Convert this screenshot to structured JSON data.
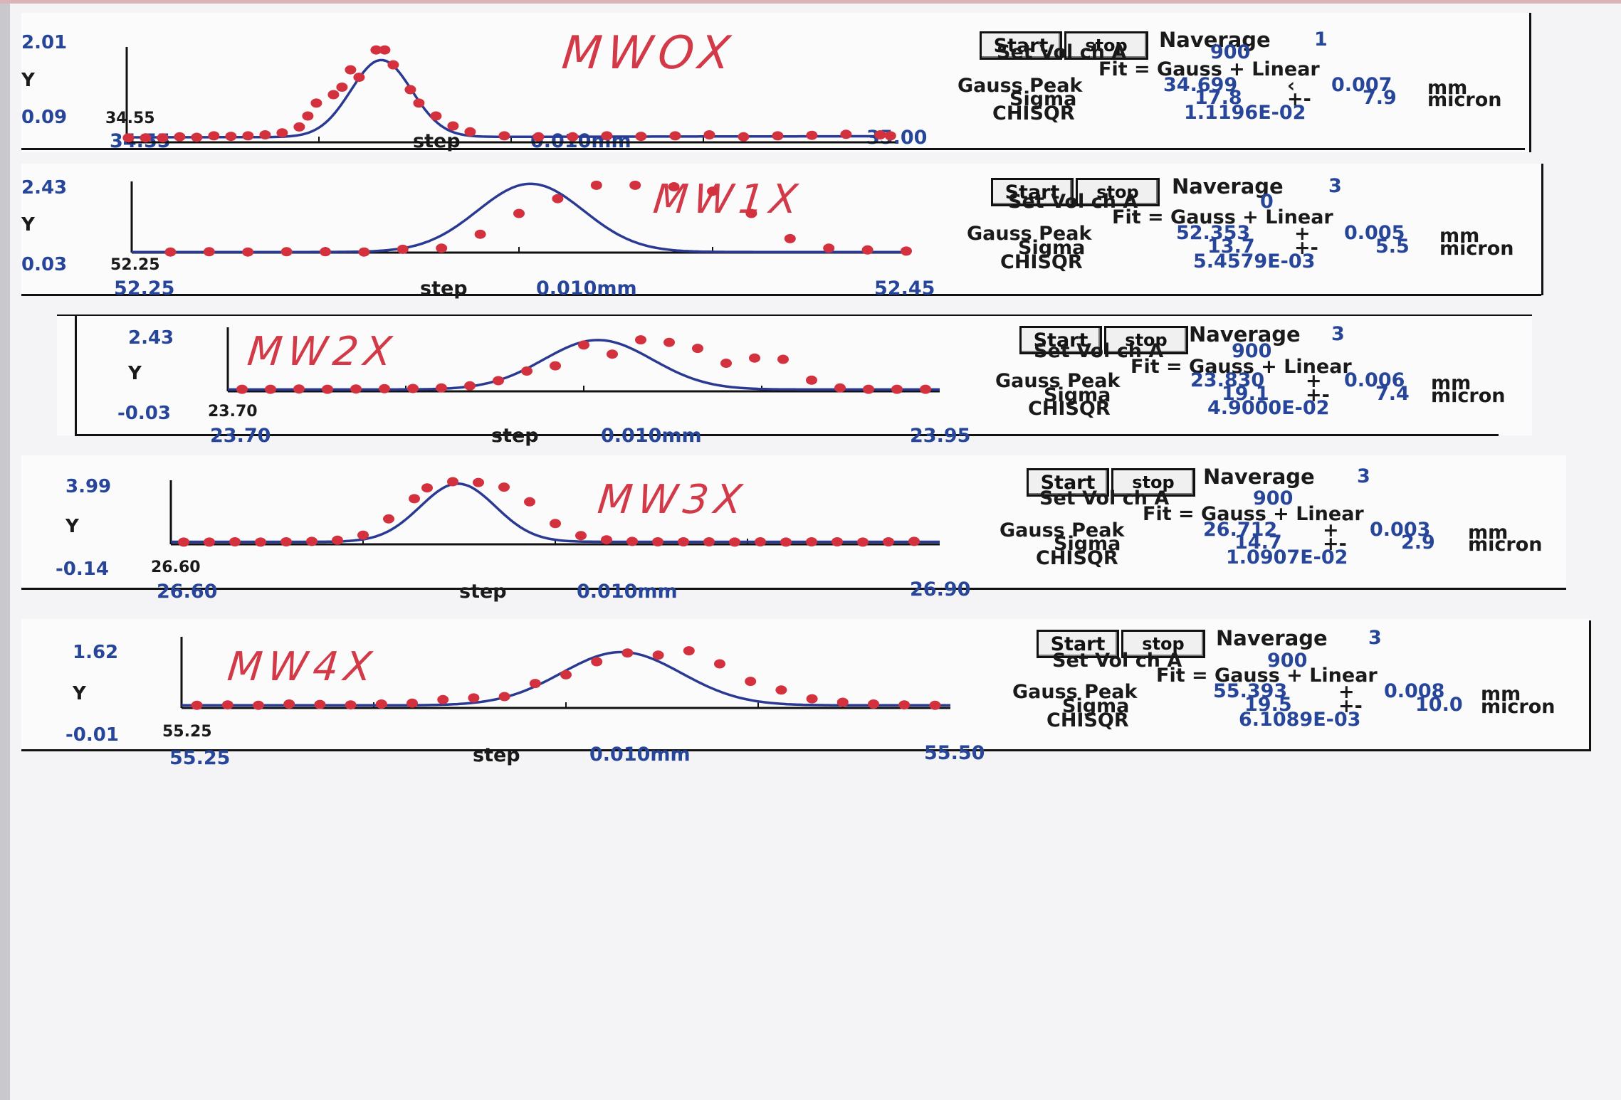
{
  "colors": {
    "marker": "#d4313f",
    "fit_line": "#2a3a92",
    "label_blue": "#27469a",
    "label_dark": "#1a1a1a",
    "handwriting": "#d23a48"
  },
  "chart_data": [
    {
      "type": "scatter",
      "annotation": "MWOX",
      "ylim": [
        0.09,
        2.01
      ],
      "y_max_label": "2.01",
      "y_min_label": "0.09",
      "ylabel": "Y",
      "x_start_small": "34.55",
      "x_start": "34.55",
      "step_label": "step",
      "step_value": "0.010mm",
      "x_end": "35.00",
      "xlim": [
        34.55,
        35.0
      ],
      "points": [
        [
          34.551,
          0.18
        ],
        [
          34.561,
          0.18
        ],
        [
          34.571,
          0.18
        ],
        [
          34.581,
          0.2
        ],
        [
          34.591,
          0.19
        ],
        [
          34.601,
          0.22
        ],
        [
          34.611,
          0.21
        ],
        [
          34.621,
          0.22
        ],
        [
          34.631,
          0.24
        ],
        [
          34.641,
          0.28
        ],
        [
          34.651,
          0.4
        ],
        [
          34.656,
          0.62
        ],
        [
          34.661,
          0.88
        ],
        [
          34.671,
          1.05
        ],
        [
          34.676,
          1.2
        ],
        [
          34.681,
          1.55
        ],
        [
          34.686,
          1.4
        ],
        [
          34.696,
          1.95
        ],
        [
          34.701,
          1.95
        ],
        [
          34.706,
          1.65
        ],
        [
          34.716,
          1.15
        ],
        [
          34.721,
          0.88
        ],
        [
          34.731,
          0.62
        ],
        [
          34.741,
          0.42
        ],
        [
          34.751,
          0.3
        ],
        [
          34.771,
          0.22
        ],
        [
          34.791,
          0.2
        ],
        [
          34.811,
          0.2
        ],
        [
          34.831,
          0.22
        ],
        [
          34.851,
          0.21
        ],
        [
          34.871,
          0.22
        ],
        [
          34.891,
          0.24
        ],
        [
          34.911,
          0.2
        ],
        [
          34.931,
          0.22
        ],
        [
          34.951,
          0.23
        ],
        [
          34.971,
          0.25
        ],
        [
          34.991,
          0.24
        ],
        [
          34.997,
          0.22
        ]
      ],
      "fit": {
        "amp": 1.55,
        "mu": 34.699,
        "sigma": 0.0178,
        "base": 0.19,
        "slope": 0.05
      },
      "controls": {
        "start": "Start",
        "stop": "stop",
        "naverage_label": "Naverage",
        "naverage": "1"
      },
      "info": {
        "setvol_label": "Set Vol ch A",
        "setvol": "900",
        "fit_label": "Fit = Gauss + Linear",
        "gauss_label": "Gauss Peak",
        "gauss_value": "34.699",
        "gauss_pm": "‹",
        "gauss_err": "0.007",
        "gauss_unit": "mm",
        "sigma_label": "Sigma",
        "sigma_value": "17.8",
        "sigma_pm": "+-",
        "sigma_err": "7.9",
        "sigma_unit": "micron",
        "chisqr_label": "CHISQR",
        "chisqr": "1.1196E-02"
      }
    },
    {
      "type": "scatter",
      "annotation": "MW1X",
      "ylim": [
        0.03,
        2.43
      ],
      "y_max_label": "2.43",
      "y_min_label": "0.03",
      "ylabel": "Y",
      "x_start_small": "52.25",
      "x_start": "52.25",
      "step_label": "step",
      "step_value": "0.010mm",
      "x_end": "52.45",
      "xlim": [
        52.25,
        52.45
      ],
      "points": [
        [
          52.26,
          0.05
        ],
        [
          52.27,
          0.06
        ],
        [
          52.28,
          0.05
        ],
        [
          52.29,
          0.06
        ],
        [
          52.3,
          0.06
        ],
        [
          52.31,
          0.05
        ],
        [
          52.32,
          0.14
        ],
        [
          52.33,
          0.18
        ],
        [
          52.34,
          0.65
        ],
        [
          52.35,
          1.35
        ],
        [
          52.36,
          1.85
        ],
        [
          52.37,
          2.3
        ],
        [
          52.38,
          2.3
        ],
        [
          52.39,
          2.25
        ],
        [
          52.4,
          2.1
        ],
        [
          52.41,
          1.35
        ],
        [
          52.42,
          0.5
        ],
        [
          52.43,
          0.18
        ],
        [
          52.44,
          0.12
        ],
        [
          52.45,
          0.08
        ]
      ],
      "fit": {
        "amp": 2.3,
        "mu": 52.353,
        "sigma": 0.0137,
        "base": 0.05,
        "slope": 0.0
      },
      "controls": {
        "start": "Start",
        "stop": "stop",
        "naverage_label": "Naverage",
        "naverage": "3"
      },
      "info": {
        "setvol_label": "Set Vol ch A",
        "setvol": "0",
        "fit_label": "Fit = Gauss + Linear",
        "gauss_label": "Gauss Peak",
        "gauss_value": "52.353",
        "gauss_pm": "+",
        "gauss_err": "0.005",
        "gauss_unit": "mm",
        "sigma_label": "Sigma",
        "sigma_value": "13.7",
        "sigma_pm": "+-",
        "sigma_err": "5.5",
        "sigma_unit": "micron",
        "chisqr_label": "CHISQR",
        "chisqr": "5.4579E-03"
      }
    },
    {
      "type": "scatter",
      "annotation": "MW2X",
      "ylim": [
        -0.03,
        2.43
      ],
      "y_max_label": "2.43",
      "y_min_label": "-0.03",
      "ylabel": "Y",
      "x_start_small": "23.70",
      "x_start": "23.70",
      "step_label": "step",
      "step_value": "0.010mm",
      "x_end": "23.95",
      "xlim": [
        23.7,
        23.95
      ],
      "points": [
        [
          23.705,
          0.05
        ],
        [
          23.715,
          0.05
        ],
        [
          23.725,
          0.06
        ],
        [
          23.735,
          0.05
        ],
        [
          23.745,
          0.06
        ],
        [
          23.755,
          0.07
        ],
        [
          23.765,
          0.08
        ],
        [
          23.775,
          0.1
        ],
        [
          23.785,
          0.18
        ],
        [
          23.795,
          0.38
        ],
        [
          23.805,
          0.75
        ],
        [
          23.815,
          0.95
        ],
        [
          23.825,
          1.75
        ],
        [
          23.835,
          1.4
        ],
        [
          23.845,
          1.95
        ],
        [
          23.855,
          1.85
        ],
        [
          23.865,
          1.62
        ],
        [
          23.875,
          1.05
        ],
        [
          23.885,
          1.25
        ],
        [
          23.895,
          1.2
        ],
        [
          23.905,
          0.4
        ],
        [
          23.915,
          0.1
        ],
        [
          23.925,
          0.05
        ],
        [
          23.935,
          0.05
        ],
        [
          23.945,
          0.05
        ]
      ],
      "fit": {
        "amp": 1.9,
        "mu": 23.83,
        "sigma": 0.0191,
        "base": 0.04,
        "slope": 0.0
      },
      "controls": {
        "start": "Start",
        "stop": "stop",
        "naverage_label": "Naverage",
        "naverage": "3"
      },
      "info": {
        "setvol_label": "Set Vol ch A",
        "setvol": "900",
        "fit_label": "Fit = Gauss + Linear",
        "gauss_label": "Gauss Peak",
        "gauss_value": "23.830",
        "gauss_pm": "+",
        "gauss_err": "0.006",
        "gauss_unit": "mm",
        "sigma_label": "Sigma",
        "sigma_value": "19.1",
        "sigma_pm": "+-",
        "sigma_err": "7.4",
        "sigma_unit": "micron",
        "chisqr_label": "CHISQR",
        "chisqr": "4.9000E-02"
      }
    },
    {
      "type": "scatter",
      "annotation": "MW3X",
      "ylim": [
        -0.14,
        3.99
      ],
      "y_max_label": "3.99",
      "y_min_label": "-0.14",
      "ylabel": "Y",
      "x_start_small": "26.60",
      "x_start": "26.60",
      "step_label": "step",
      "step_value": "0.010mm",
      "x_end": "26.90",
      "xlim": [
        26.6,
        26.9
      ],
      "points": [
        [
          26.605,
          0.0
        ],
        [
          26.615,
          0.0
        ],
        [
          26.625,
          0.02
        ],
        [
          26.635,
          0.0
        ],
        [
          26.645,
          0.02
        ],
        [
          26.655,
          0.05
        ],
        [
          26.665,
          0.12
        ],
        [
          26.675,
          0.45
        ],
        [
          26.685,
          1.5
        ],
        [
          26.695,
          2.8
        ],
        [
          26.7,
          3.5
        ],
        [
          26.71,
          3.9
        ],
        [
          26.72,
          3.85
        ],
        [
          26.73,
          3.55
        ],
        [
          26.74,
          2.6
        ],
        [
          26.75,
          1.2
        ],
        [
          26.76,
          0.42
        ],
        [
          26.77,
          0.15
        ],
        [
          26.78,
          0.05
        ],
        [
          26.79,
          0.02
        ],
        [
          26.8,
          0.02
        ],
        [
          26.81,
          0.02
        ],
        [
          26.82,
          0.0
        ],
        [
          26.83,
          0.02
        ],
        [
          26.84,
          0.0
        ],
        [
          26.85,
          0.02
        ],
        [
          26.86,
          0.02
        ],
        [
          26.87,
          0.0
        ],
        [
          26.88,
          0.02
        ],
        [
          26.89,
          0.05
        ]
      ],
      "fit": {
        "amp": 3.75,
        "mu": 26.712,
        "sigma": 0.0147,
        "base": 0.02,
        "slope": 0.0
      },
      "controls": {
        "start": "Start",
        "stop": "stop",
        "naverage_label": "Naverage",
        "naverage": "3"
      },
      "info": {
        "setvol_label": "Set Vol ch A",
        "setvol": "900",
        "fit_label": "Fit = Gauss + Linear",
        "gauss_label": "Gauss Peak",
        "gauss_value": "26.712",
        "gauss_pm": "+",
        "gauss_err": "0.003",
        "gauss_unit": "mm",
        "sigma_label": "Sigma",
        "sigma_value": "14.7",
        "sigma_pm": "+-",
        "sigma_err": "2.9",
        "sigma_unit": "micron",
        "chisqr_label": "CHISQR",
        "chisqr": "1.0907E-02"
      }
    },
    {
      "type": "scatter",
      "annotation": "MW4X",
      "ylim": [
        -0.01,
        1.62
      ],
      "y_max_label": "1.62",
      "y_min_label": "-0.01",
      "ylabel": "Y",
      "x_start_small": "55.25",
      "x_start": "55.25",
      "step_label": "step",
      "step_value": "0.010mm",
      "x_end": "55.50",
      "xlim": [
        55.25,
        55.5
      ],
      "points": [
        [
          55.255,
          0.05
        ],
        [
          55.265,
          0.06
        ],
        [
          55.275,
          0.05
        ],
        [
          55.285,
          0.08
        ],
        [
          55.295,
          0.07
        ],
        [
          55.305,
          0.06
        ],
        [
          55.315,
          0.08
        ],
        [
          55.325,
          0.1
        ],
        [
          55.335,
          0.18
        ],
        [
          55.345,
          0.22
        ],
        [
          55.355,
          0.25
        ],
        [
          55.365,
          0.55
        ],
        [
          55.375,
          0.75
        ],
        [
          55.385,
          1.05
        ],
        [
          55.395,
          1.25
        ],
        [
          55.405,
          1.2
        ],
        [
          55.415,
          1.3
        ],
        [
          55.425,
          1.0
        ],
        [
          55.435,
          0.6
        ],
        [
          55.445,
          0.4
        ],
        [
          55.455,
          0.2
        ],
        [
          55.465,
          0.12
        ],
        [
          55.475,
          0.08
        ],
        [
          55.485,
          0.06
        ],
        [
          55.495,
          0.05
        ]
      ],
      "fit": {
        "amp": 1.22,
        "mu": 55.393,
        "sigma": 0.0195,
        "base": 0.05,
        "slope": 0.0
      },
      "controls": {
        "start": "Start",
        "stop": "stop",
        "naverage_label": "Naverage",
        "naverage": "3"
      },
      "info": {
        "setvol_label": "Set Vol ch A",
        "setvol": "900",
        "fit_label": "Fit = Gauss + Linear",
        "gauss_label": "Gauss Peak",
        "gauss_value": "55.393",
        "gauss_pm": "+",
        "gauss_err": "0.008",
        "gauss_unit": "mm",
        "sigma_label": "Sigma",
        "sigma_value": "19.5",
        "sigma_pm": "+-",
        "sigma_err": "10.0",
        "sigma_unit": "micron",
        "chisqr_label": "CHISQR",
        "chisqr": "6.1089E-03"
      }
    }
  ]
}
